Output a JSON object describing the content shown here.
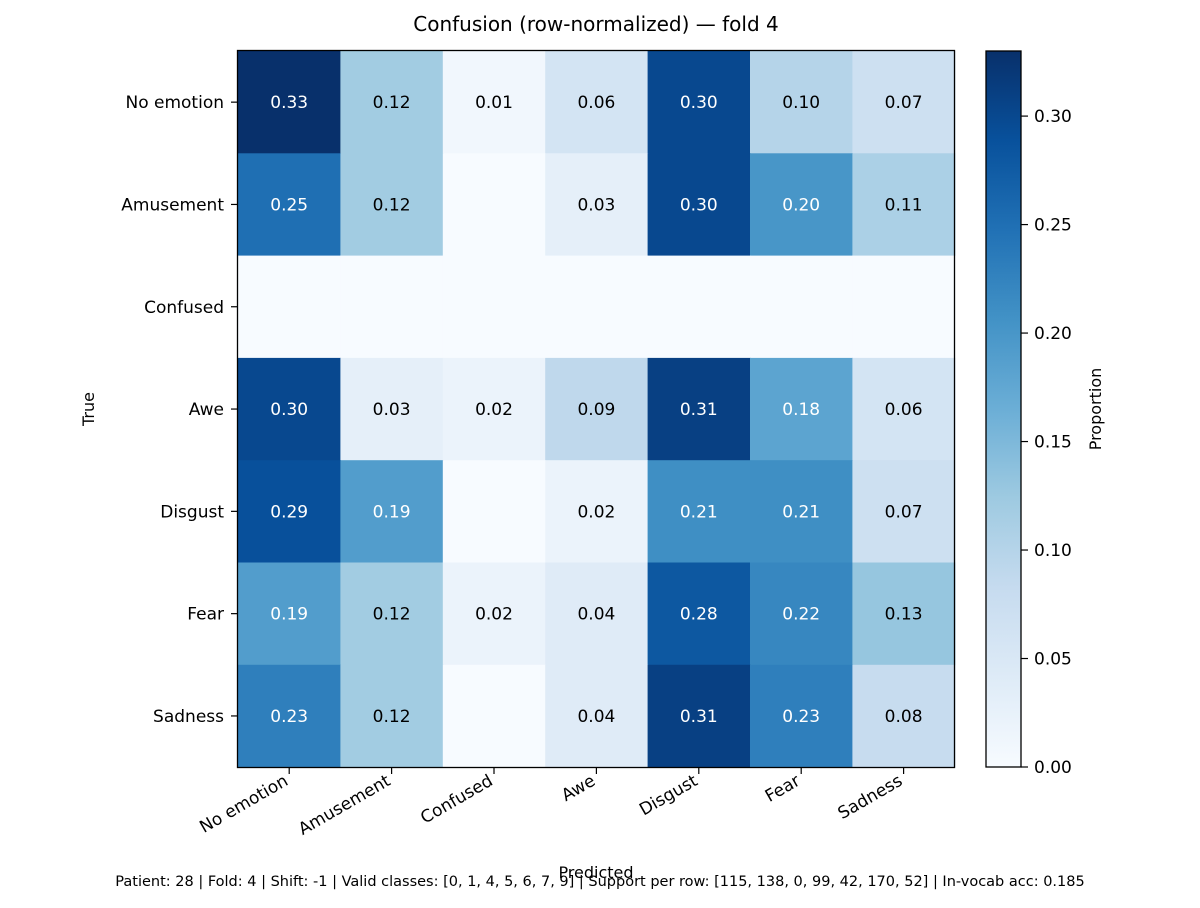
{
  "chart_data": {
    "type": "heatmap",
    "title": "Confusion (row-normalized) — fold 4",
    "xlabel": "Predicted",
    "ylabel": "True",
    "x_labels": [
      "No emotion",
      "Amusement",
      "Confused",
      "Awe",
      "Disgust",
      "Fear",
      "Sadness"
    ],
    "y_labels": [
      "No emotion",
      "Amusement",
      "Confused",
      "Awe",
      "Disgust",
      "Fear",
      "Sadness"
    ],
    "values": [
      [
        0.33,
        0.12,
        0.01,
        0.06,
        0.3,
        0.1,
        0.07
      ],
      [
        0.25,
        0.12,
        0.0,
        0.03,
        0.3,
        0.2,
        0.11
      ],
      [
        0.0,
        0.0,
        0.0,
        0.0,
        0.0,
        0.0,
        0.0
      ],
      [
        0.3,
        0.03,
        0.02,
        0.09,
        0.31,
        0.18,
        0.06
      ],
      [
        0.29,
        0.19,
        0.0,
        0.02,
        0.21,
        0.21,
        0.07
      ],
      [
        0.19,
        0.12,
        0.02,
        0.04,
        0.28,
        0.22,
        0.13
      ],
      [
        0.23,
        0.12,
        0.0,
        0.04,
        0.31,
        0.23,
        0.08
      ]
    ],
    "cell_labels": [
      [
        "0.33",
        "0.12",
        "0.01",
        "0.06",
        "0.30",
        "0.10",
        "0.07"
      ],
      [
        "0.25",
        "0.12",
        "",
        "0.03",
        "0.30",
        "0.20",
        "0.11"
      ],
      [
        "",
        "",
        "",
        "",
        "",
        "",
        ""
      ],
      [
        "0.30",
        "0.03",
        "0.02",
        "0.09",
        "0.31",
        "0.18",
        "0.06"
      ],
      [
        "0.29",
        "0.19",
        "",
        "0.02",
        "0.21",
        "0.21",
        "0.07"
      ],
      [
        "0.19",
        "0.12",
        "0.02",
        "0.04",
        "0.28",
        "0.22",
        "0.13"
      ],
      [
        "0.23",
        "0.12",
        "",
        "0.04",
        "0.31",
        "0.23",
        "0.08"
      ]
    ],
    "colormap": "Blues",
    "vmin": 0.0,
    "vmax": 0.33,
    "colorbar": {
      "label": "Proportion",
      "ticks": [
        0.0,
        0.05,
        0.1,
        0.15,
        0.2,
        0.25,
        0.3
      ],
      "tick_labels": [
        "0.00",
        "0.05",
        "0.10",
        "0.15",
        "0.20",
        "0.25",
        "0.30"
      ]
    },
    "grid": false,
    "legend": "none"
  },
  "footer_text": "Patient: 28 | Fold: 4 | Shift: -1 | Valid classes: [0, 1, 4, 5, 6, 7, 9] | Support per row: [115, 138, 0, 99, 42, 170, 52] | In-vocab acc: 0.185"
}
